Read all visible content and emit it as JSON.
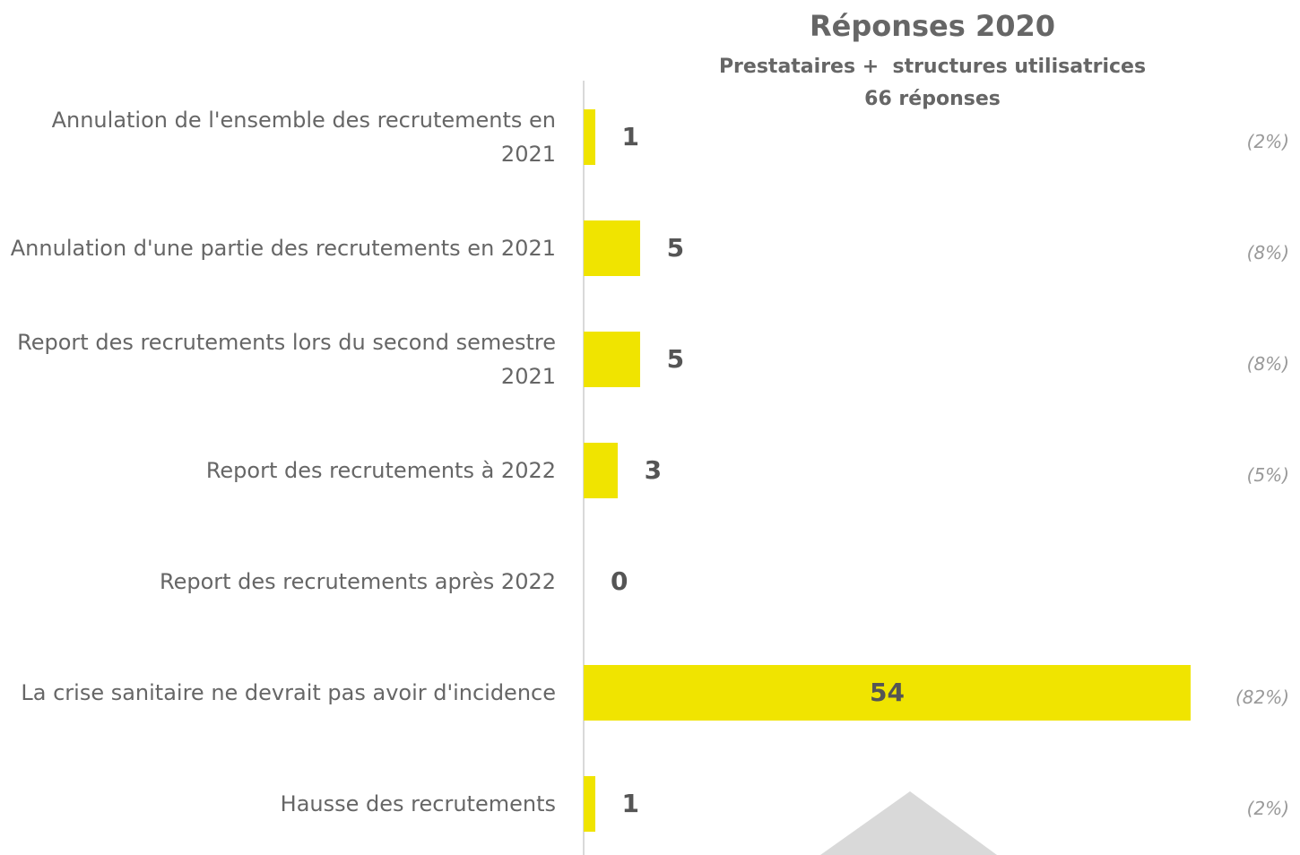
{
  "chart_data": {
    "type": "bar",
    "orientation": "horizontal",
    "title": "Réponses 2020",
    "subtitle": [
      "Prestataires +  structures utilisatrices",
      "66 réponses"
    ],
    "categories": [
      "Annulation de l'ensemble des recrutements en 2021",
      "Annulation d'une partie des recrutements en 2021",
      "Report des recrutements lors du second semestre 2021",
      "Report des recrutements à 2022",
      "Report des recrutements après 2022",
      "La crise sanitaire ne devrait pas avoir d'incidence",
      "Hausse des recrutements"
    ],
    "values": [
      1,
      5,
      5,
      3,
      0,
      54,
      1
    ],
    "annotations": [
      "(2%)",
      "(8%)",
      "(8%)",
      "(5%)",
      null,
      "(82%)",
      "(2%)"
    ],
    "color": "#f0e400"
  }
}
